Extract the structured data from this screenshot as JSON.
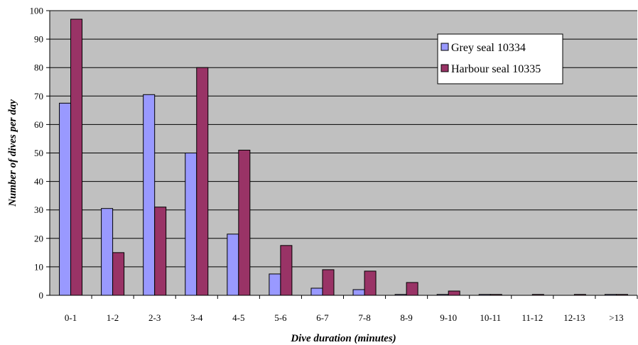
{
  "chart_data": {
    "type": "bar",
    "title": "",
    "xlabel": "Dive duration (minutes)",
    "ylabel": "Number of dives per day",
    "ylim": [
      0,
      100
    ],
    "yticks": [
      0,
      10,
      20,
      30,
      40,
      50,
      60,
      70,
      80,
      90,
      100
    ],
    "grid": true,
    "legend_position": "top-right",
    "categories": [
      "0-1",
      "1-2",
      "2-3",
      "3-4",
      "4-5",
      "5-6",
      "6-7",
      "7-8",
      "8-9",
      "9-10",
      "10-11",
      "11-12",
      "12-13",
      ">13"
    ],
    "series": [
      {
        "name": "Grey seal 10334",
        "color": "#9999ff",
        "values": [
          67.5,
          30.5,
          70.5,
          50,
          21.5,
          7.5,
          2.5,
          2,
          0.3,
          0.3,
          0.3,
          0,
          0,
          0.3
        ]
      },
      {
        "name": "Harbour seal 10335",
        "color": "#993366",
        "values": [
          97,
          15,
          31,
          80,
          51,
          17.5,
          9,
          8.5,
          4.5,
          1.5,
          0.3,
          0.3,
          0.3,
          0.3
        ]
      }
    ],
    "plot_background": "#c0c0c0"
  }
}
